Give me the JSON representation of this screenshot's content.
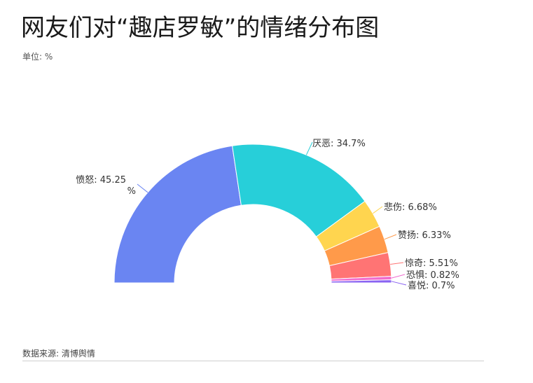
{
  "title": "网友们对“趣店罗敏”的情绪分布图",
  "subtitle": "单位: %",
  "source": "数据来源: 清博舆情",
  "chart_data": {
    "type": "pie",
    "variant": "half-donut",
    "unit": "%",
    "series": [
      {
        "name": "愤怒",
        "label": "愤怒: 45.25 %",
        "value": 45.25,
        "color": "#6a85f2"
      },
      {
        "name": "厌恶",
        "label": "厌恶: 34.7%",
        "value": 34.7,
        "color": "#27cfd9"
      },
      {
        "name": "悲伤",
        "label": "悲伤: 6.68%",
        "value": 6.68,
        "color": "#ffd54f"
      },
      {
        "name": "赞扬",
        "label": "赞扬: 6.33%",
        "value": 6.33,
        "color": "#ff9a4a"
      },
      {
        "name": "惊奇",
        "label": "惊奇: 5.51%",
        "value": 5.51,
        "color": "#ff7474"
      },
      {
        "name": "恐惧",
        "label": "恐惧: 0.82%",
        "value": 0.82,
        "color": "#f06ccf"
      },
      {
        "name": "喜悦",
        "label": "喜悦: 0.7%",
        "value": 0.7,
        "color": "#8a63f2"
      }
    ]
  }
}
